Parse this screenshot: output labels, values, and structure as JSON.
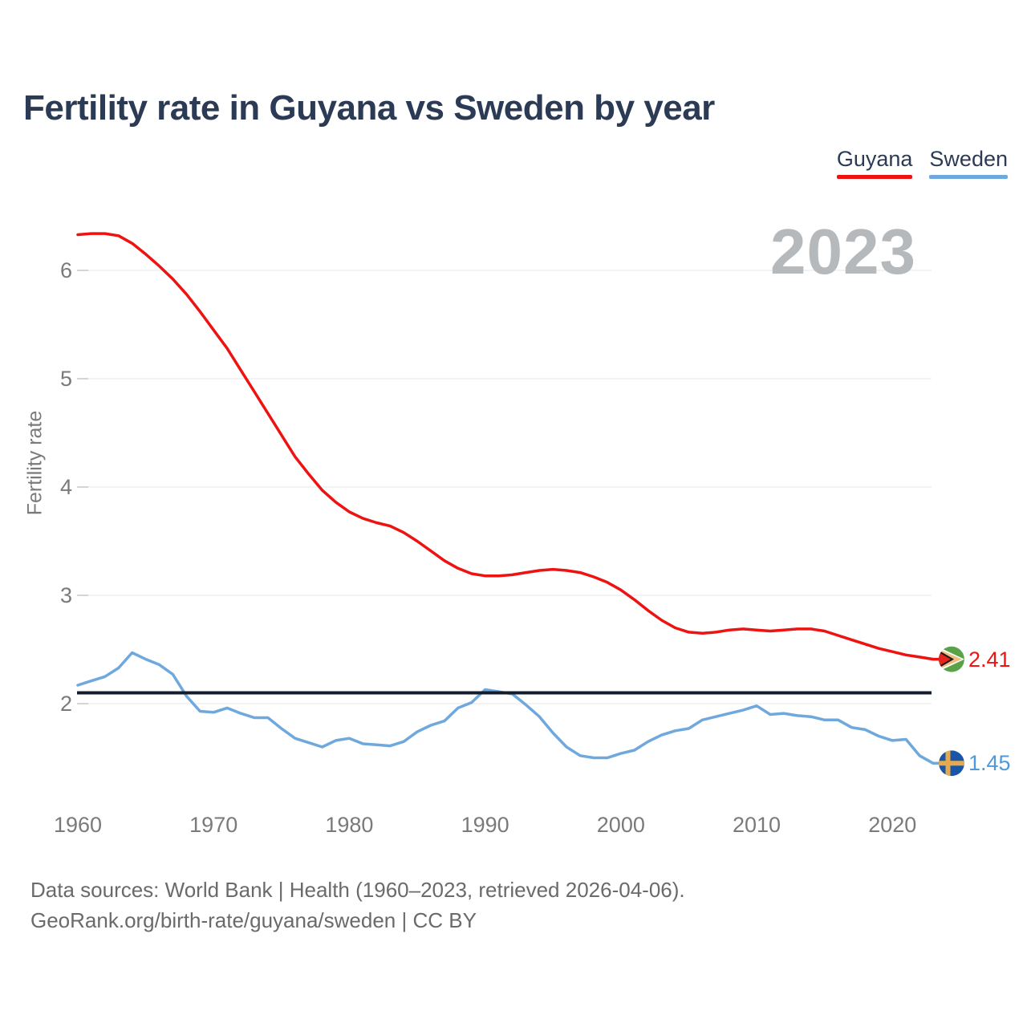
{
  "page": {
    "title": "Fertility rate in Guyana vs Sweden by year",
    "watermark_year": "2023",
    "footer_line1": "Data sources: World Bank | Health (1960–2023, retrieved 2026-04-06).",
    "footer_line2": "GeoRank.org/birth-rate/guyana/sweden | CC BY"
  },
  "legend": {
    "items": [
      {
        "label": "Guyana",
        "color": "#ee1211"
      },
      {
        "label": "Sweden",
        "color": "#6fa8dd"
      }
    ]
  },
  "chart_data": {
    "type": "line",
    "title": "Fertility rate in Guyana vs Sweden by year",
    "xlabel": "",
    "ylabel": "Fertility rate",
    "x_start": 1960,
    "x_end": 2023,
    "x_ticks": [
      1960,
      1970,
      1980,
      1990,
      2000,
      2010,
      2020
    ],
    "y_ticks": [
      2,
      3,
      4,
      5,
      6
    ],
    "ylim": [
      1.2,
      6.55
    ],
    "grid": "horizontal",
    "legend_position": "top-right",
    "watermark": "2023",
    "reference_line": {
      "value": 2.1,
      "color": "#141d2c"
    },
    "colors": {
      "guyana": "#ee1211",
      "sweden": "#6fa8dd",
      "axis_text": "#7a7a7a",
      "gridline": "#ececec",
      "title_text": "#2b3b55",
      "watermark": "#b6b9bc",
      "footer_text": "#6a6a6a"
    },
    "series": [
      {
        "name": "Guyana",
        "color": "#ee1211",
        "label_color": "#f01310",
        "end_label": "2.41",
        "end_value": 2.41,
        "flag": "guyana",
        "values": [
          6.33,
          6.34,
          6.34,
          6.32,
          6.25,
          6.15,
          6.04,
          5.92,
          5.78,
          5.62,
          5.45,
          5.28,
          5.08,
          4.88,
          4.68,
          4.48,
          4.28,
          4.12,
          3.97,
          3.86,
          3.77,
          3.71,
          3.67,
          3.64,
          3.58,
          3.5,
          3.41,
          3.32,
          3.25,
          3.2,
          3.18,
          3.18,
          3.19,
          3.21,
          3.23,
          3.24,
          3.23,
          3.21,
          3.17,
          3.12,
          3.05,
          2.96,
          2.86,
          2.77,
          2.7,
          2.66,
          2.65,
          2.66,
          2.68,
          2.69,
          2.68,
          2.67,
          2.68,
          2.69,
          2.69,
          2.67,
          2.63,
          2.59,
          2.55,
          2.51,
          2.48,
          2.45,
          2.43,
          2.41
        ]
      },
      {
        "name": "Sweden",
        "color": "#6fa8dd",
        "label_color": "#4f99da",
        "end_label": "1.45",
        "end_value": 1.45,
        "flag": "sweden",
        "values": [
          2.17,
          2.21,
          2.25,
          2.33,
          2.47,
          2.41,
          2.36,
          2.27,
          2.07,
          1.93,
          1.92,
          1.96,
          1.91,
          1.87,
          1.87,
          1.77,
          1.68,
          1.64,
          1.6,
          1.66,
          1.68,
          1.63,
          1.62,
          1.61,
          1.65,
          1.74,
          1.8,
          1.84,
          1.96,
          2.01,
          2.13,
          2.11,
          2.09,
          1.99,
          1.88,
          1.73,
          1.6,
          1.52,
          1.5,
          1.5,
          1.54,
          1.57,
          1.65,
          1.71,
          1.75,
          1.77,
          1.85,
          1.88,
          1.91,
          1.94,
          1.98,
          1.9,
          1.91,
          1.89,
          1.88,
          1.85,
          1.85,
          1.78,
          1.76,
          1.7,
          1.66,
          1.67,
          1.52,
          1.45
        ]
      }
    ]
  }
}
